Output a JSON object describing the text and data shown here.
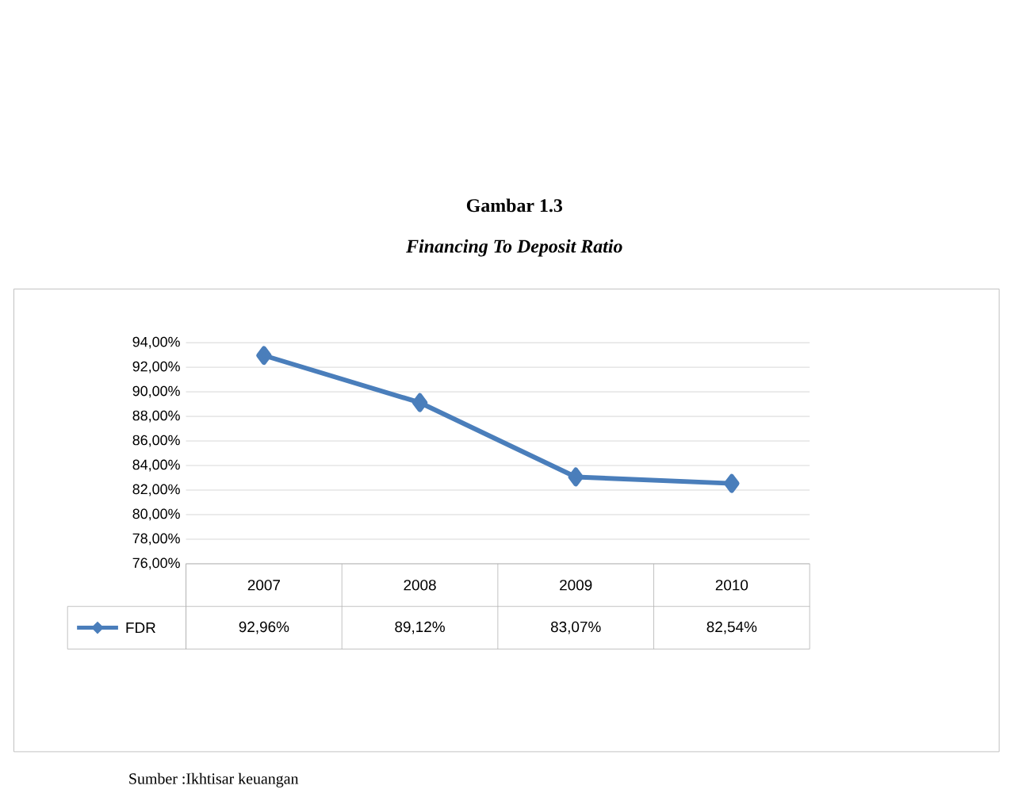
{
  "chart_data": {
    "type": "line",
    "title": "Gambar 1.3",
    "subtitle": "Financing To Deposit Ratio",
    "categories": [
      "2007",
      "2008",
      "2009",
      "2010"
    ],
    "series": [
      {
        "name": "FDR",
        "color": "#4a7ebb",
        "values": [
          92.96,
          89.12,
          83.07,
          82.54
        ],
        "value_labels": [
          "92,96%",
          "89,12%",
          "83,07%",
          "82,54%"
        ]
      }
    ],
    "ylim": [
      76,
      94
    ],
    "yticks": [
      {
        "value": 76,
        "label": "76,00%"
      },
      {
        "value": 78,
        "label": "78,00%"
      },
      {
        "value": 80,
        "label": "80,00%"
      },
      {
        "value": 82,
        "label": "82,00%"
      },
      {
        "value": 84,
        "label": "84,00%"
      },
      {
        "value": 86,
        "label": "86,00%"
      },
      {
        "value": 88,
        "label": "88,00%"
      },
      {
        "value": 90,
        "label": "90,00%"
      },
      {
        "value": 92,
        "label": "92,00%"
      },
      {
        "value": 94,
        "label": "94,00%"
      }
    ],
    "grid": "y",
    "marker": "diamond",
    "line_style": "solid",
    "legend": "bottom left",
    "annotations": [
      "Sumber :Ikhtisar keuangan"
    ]
  }
}
